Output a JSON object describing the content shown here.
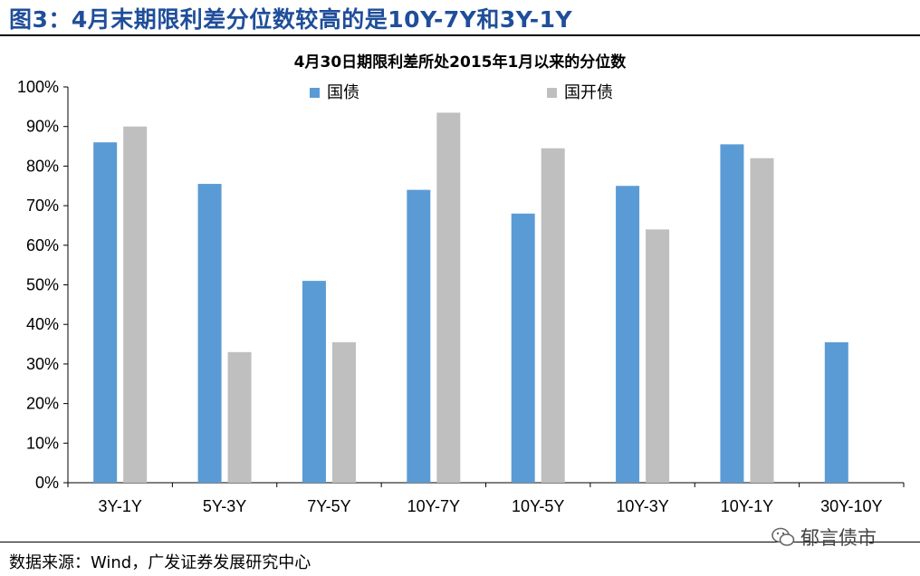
{
  "figure": {
    "title": "图3：4月末期限利差分位数较高的是10Y-7Y和3Y-1Y",
    "source": "数据来源：Wind，广发证券发展研究中心",
    "watermark": "郁言债市"
  },
  "chart_data": {
    "type": "bar",
    "title": "4月30日期限利差所处2015年1月以来的分位数",
    "categories": [
      "3Y-1Y",
      "5Y-3Y",
      "7Y-5Y",
      "10Y-7Y",
      "10Y-5Y",
      "10Y-3Y",
      "10Y-1Y",
      "30Y-10Y"
    ],
    "series": [
      {
        "name": "国债",
        "color": "#5b9bd5",
        "values": [
          86,
          75.5,
          51,
          74,
          68,
          75,
          85.5,
          35.5
        ]
      },
      {
        "name": "国开债",
        "color": "#bfbfbf",
        "values": [
          90,
          33,
          35.5,
          93.5,
          84.5,
          64,
          82,
          null
        ]
      }
    ],
    "ylim": [
      0,
      100
    ],
    "yticks": [
      "0%",
      "10%",
      "20%",
      "30%",
      "40%",
      "50%",
      "60%",
      "70%",
      "80%",
      "90%",
      "100%"
    ],
    "legend_position": "top",
    "grid": false
  }
}
